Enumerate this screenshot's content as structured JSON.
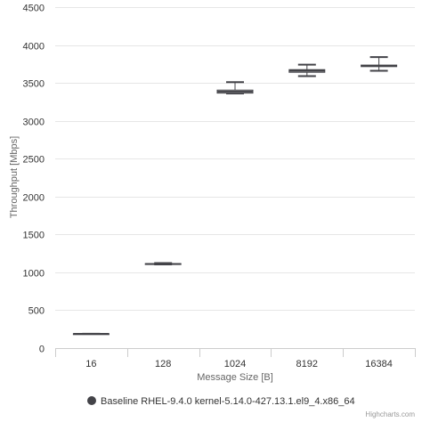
{
  "chart_data": {
    "type": "boxplot",
    "categories": [
      "16",
      "128",
      "1024",
      "8192",
      "16384"
    ],
    "xlabel": "Message Size [B]",
    "ylabel": "Throughput [Mbps]",
    "ylim": [
      0,
      4500
    ],
    "yticks": [
      0,
      500,
      1000,
      1500,
      2000,
      2500,
      3000,
      3500,
      4000,
      4500
    ],
    "grid": true,
    "legend_position": "bottom-center",
    "series": [
      {
        "name": "Baseline RHEL-9.4.0 kernel-5.14.0-427.13.1.el9_4.x86_64",
        "color": "#434348",
        "boxes": [
          {
            "low": 188,
            "q1": 188,
            "median": 188,
            "q3": 190,
            "high": 190
          },
          {
            "low": 1105,
            "q1": 1107,
            "median": 1110,
            "q3": 1115,
            "high": 1122
          },
          {
            "low": 3360,
            "q1": 3365,
            "median": 3385,
            "q3": 3405,
            "high": 3510
          },
          {
            "low": 3590,
            "q1": 3640,
            "median": 3660,
            "q3": 3675,
            "high": 3740
          },
          {
            "low": 3660,
            "q1": 3715,
            "median": 3725,
            "q3": 3735,
            "high": 3840
          }
        ]
      }
    ],
    "credits": "Highcharts.com"
  }
}
